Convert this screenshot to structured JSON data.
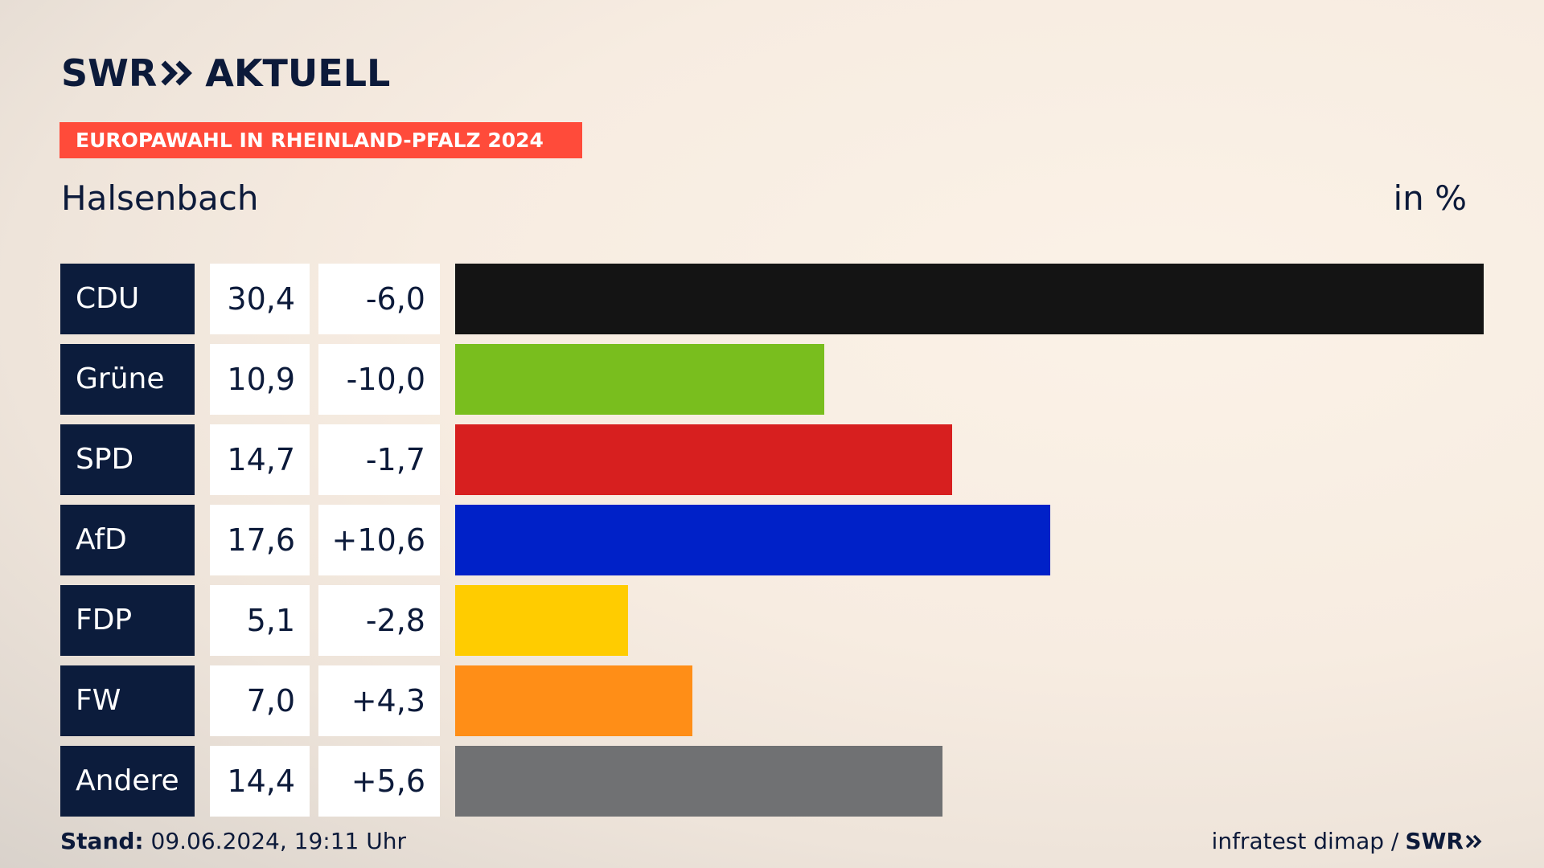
{
  "header": {
    "logo_brand": "SWR",
    "logo_product": "AKTUELL",
    "banner": "EUROPAWAHL IN RHEINLAND-PFALZ 2024",
    "region": "Halsenbach",
    "unit": "in %"
  },
  "chart_data": {
    "type": "bar",
    "orientation": "horizontal",
    "categories": [
      "CDU",
      "Grüne",
      "SPD",
      "AfD",
      "FDP",
      "FW",
      "Andere"
    ],
    "values": [
      30.4,
      10.9,
      14.7,
      17.6,
      5.1,
      7.0,
      14.4
    ],
    "values_label": [
      "30,4",
      "10,9",
      "14,7",
      "17,6",
      "5,1",
      "7,0",
      "14,4"
    ],
    "changes": [
      -6.0,
      -10.0,
      -1.7,
      10.6,
      -2.8,
      4.3,
      5.6
    ],
    "changes_label": [
      "-6,0",
      "-10,0",
      "-1,7",
      "+10,6",
      "-2,8",
      "+4,3",
      "+5,6"
    ],
    "colors": [
      "#141414",
      "#79be1e",
      "#d71f1f",
      "#0021c8",
      "#ffcc00",
      "#ff8e17",
      "#707173"
    ],
    "xlim": [
      0,
      30.4
    ]
  },
  "footer": {
    "stand_label": "Stand:",
    "stand_value": " 09.06.2024, 19:11 Uhr",
    "source": "infratest dimap /",
    "source_brand": "SWR"
  }
}
